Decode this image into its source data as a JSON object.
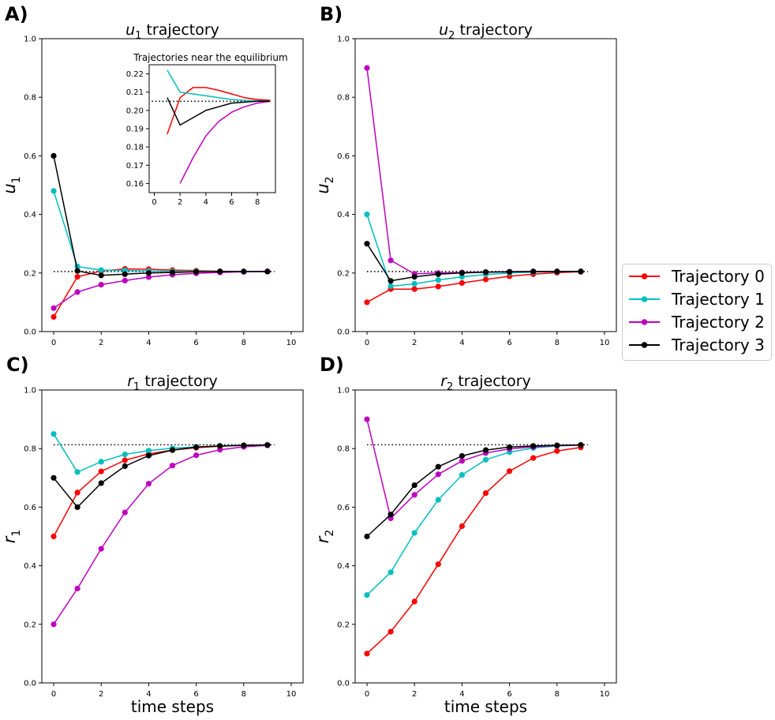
{
  "legend": {
    "placement": "center-right",
    "entries": [
      {
        "label": "Trajectory 0",
        "color": "#ff0000"
      },
      {
        "label": "Trajectory 1",
        "color": "#00bfbf"
      },
      {
        "label": "Trajectory 2",
        "color": "#bf00bf"
      },
      {
        "label": "Trajectory 3",
        "color": "#000000"
      }
    ]
  },
  "chart_data": [
    {
      "id": "u1",
      "panel_label": "A)",
      "type": "line",
      "title": "u₁ trajectory",
      "title_var": "u",
      "title_sub": "1",
      "title_rest": " trajectory",
      "ylabel": "u",
      "ylabel_sub": "1",
      "xlabel": "",
      "xlim": [
        -0.5,
        10.5
      ],
      "ylim": [
        0,
        1
      ],
      "xticks": [
        0,
        2,
        4,
        6,
        8,
        10
      ],
      "yticks": [
        "0.0",
        "0.2",
        "0.4",
        "0.6",
        "0.8",
        "1.0"
      ],
      "equilibrium": 0.205,
      "x": [
        0,
        1,
        2,
        3,
        4,
        5,
        6,
        7,
        8,
        9
      ],
      "series": [
        {
          "name": "Trajectory 0",
          "color": "#ff0000",
          "values": [
            0.05,
            0.187,
            0.207,
            0.214,
            0.213,
            0.21,
            0.208,
            0.206,
            0.205,
            0.205
          ]
        },
        {
          "name": "Trajectory 1",
          "color": "#00bfbf",
          "values": [
            0.48,
            0.222,
            0.21,
            0.209,
            0.207,
            0.206,
            0.206,
            0.205,
            0.205,
            0.205
          ]
        },
        {
          "name": "Trajectory 2",
          "color": "#bf00bf",
          "values": [
            0.08,
            0.135,
            0.16,
            0.174,
            0.186,
            0.194,
            0.199,
            0.202,
            0.204,
            0.205
          ]
        },
        {
          "name": "Trajectory 3",
          "color": "#000000",
          "values": [
            0.6,
            0.207,
            0.192,
            0.196,
            0.2,
            0.202,
            0.204,
            0.205,
            0.205,
            0.205
          ]
        }
      ],
      "inset": {
        "title": "Trajectories near the equilibrium",
        "type": "line",
        "xlim": [
          -0.4,
          9.4
        ],
        "ylim": [
          0.155,
          0.225
        ],
        "xticks": [
          0,
          2,
          4,
          6,
          8
        ],
        "yticks": [
          0.16,
          0.17,
          0.18,
          0.19,
          0.2,
          0.21,
          0.22
        ],
        "ytick_labels": [
          "0.16",
          "0.17",
          "0.18",
          "0.19",
          "0.20",
          "0.21",
          "0.22"
        ],
        "equilibrium": 0.205,
        "series": [
          {
            "name": "Trajectory 0",
            "color": "#ff0000",
            "x": [
              1,
              2,
              3,
              4,
              5,
              6,
              7,
              8,
              9
            ],
            "values": [
              0.187,
              0.207,
              0.2125,
              0.2125,
              0.211,
              0.209,
              0.207,
              0.206,
              0.2055
            ]
          },
          {
            "name": "Trajectory 1",
            "color": "#00bfbf",
            "x": [
              1,
              2,
              3,
              4,
              5,
              6,
              7,
              8,
              9
            ],
            "values": [
              0.222,
              0.21,
              0.209,
              0.208,
              0.207,
              0.206,
              0.2055,
              0.2053,
              0.205
            ]
          },
          {
            "name": "Trajectory 2",
            "color": "#bf00bf",
            "x": [
              2,
              3,
              4,
              5,
              6,
              7,
              8,
              9
            ],
            "values": [
              0.16,
              0.174,
              0.186,
              0.194,
              0.199,
              0.202,
              0.204,
              0.205
            ]
          },
          {
            "name": "Trajectory 3",
            "color": "#000000",
            "x": [
              1,
              2,
              3,
              4,
              5,
              6,
              7,
              8,
              9
            ],
            "values": [
              0.207,
              0.192,
              0.196,
              0.2,
              0.202,
              0.204,
              0.2045,
              0.205,
              0.205
            ]
          }
        ]
      }
    },
    {
      "id": "u2",
      "panel_label": "B)",
      "type": "line",
      "title": "u₂ trajectory",
      "title_var": "u",
      "title_sub": "2",
      "title_rest": " trajectory",
      "ylabel": "u",
      "ylabel_sub": "2",
      "xlabel": "",
      "xlim": [
        -0.5,
        10.5
      ],
      "ylim": [
        0,
        1
      ],
      "xticks": [
        0,
        2,
        4,
        6,
        8,
        10
      ],
      "yticks": [
        "0.0",
        "0.2",
        "0.4",
        "0.6",
        "0.8",
        "1.0"
      ],
      "equilibrium": 0.205,
      "x": [
        0,
        1,
        2,
        3,
        4,
        5,
        6,
        7,
        8,
        9
      ],
      "series": [
        {
          "name": "Trajectory 0",
          "color": "#ff0000",
          "values": [
            0.1,
            0.145,
            0.145,
            0.154,
            0.166,
            0.178,
            0.189,
            0.196,
            0.201,
            0.204
          ]
        },
        {
          "name": "Trajectory 1",
          "color": "#00bfbf",
          "values": [
            0.4,
            0.155,
            0.163,
            0.176,
            0.187,
            0.195,
            0.2,
            0.203,
            0.204,
            0.205
          ]
        },
        {
          "name": "Trajectory 2",
          "color": "#bf00bf",
          "values": [
            0.9,
            0.243,
            0.197,
            0.2,
            0.202,
            0.203,
            0.204,
            0.205,
            0.205,
            0.205
          ]
        },
        {
          "name": "Trajectory 3",
          "color": "#000000",
          "values": [
            0.3,
            0.173,
            0.187,
            0.196,
            0.2,
            0.203,
            0.204,
            0.205,
            0.205,
            0.205
          ]
        }
      ]
    },
    {
      "id": "r1",
      "panel_label": "C)",
      "type": "line",
      "title": "r₁ trajectory",
      "title_var": "r",
      "title_sub": "1",
      "title_rest": " trajectory",
      "ylabel": "r",
      "ylabel_sub": "1",
      "xlabel": "time steps",
      "xlim": [
        -0.5,
        10.5
      ],
      "ylim": [
        0,
        1
      ],
      "xticks": [
        0,
        2,
        4,
        6,
        8,
        10
      ],
      "yticks": [
        "0.0",
        "0.2",
        "0.4",
        "0.6",
        "0.8",
        "1.0"
      ],
      "equilibrium": 0.813,
      "x": [
        0,
        1,
        2,
        3,
        4,
        5,
        6,
        7,
        8,
        9
      ],
      "series": [
        {
          "name": "Trajectory 0",
          "color": "#ff0000",
          "values": [
            0.5,
            0.65,
            0.722,
            0.76,
            0.782,
            0.795,
            0.803,
            0.808,
            0.811,
            0.812
          ]
        },
        {
          "name": "Trajectory 1",
          "color": "#00bfbf",
          "values": [
            0.85,
            0.72,
            0.755,
            0.78,
            0.793,
            0.801,
            0.806,
            0.809,
            0.811,
            0.812
          ]
        },
        {
          "name": "Trajectory 2",
          "color": "#bf00bf",
          "values": [
            0.2,
            0.322,
            0.458,
            0.582,
            0.68,
            0.742,
            0.777,
            0.796,
            0.806,
            0.811
          ]
        },
        {
          "name": "Trajectory 3",
          "color": "#000000",
          "values": [
            0.7,
            0.6,
            0.682,
            0.74,
            0.776,
            0.795,
            0.805,
            0.809,
            0.811,
            0.812
          ]
        }
      ]
    },
    {
      "id": "r2",
      "panel_label": "D)",
      "type": "line",
      "title": "r₂ trajectory",
      "title_var": "r",
      "title_sub": "2",
      "title_rest": " trajectory",
      "ylabel": "r",
      "ylabel_sub": "2",
      "xlabel": "time steps",
      "xlim": [
        -0.5,
        10.5
      ],
      "ylim": [
        0,
        1
      ],
      "xticks": [
        0,
        2,
        4,
        6,
        8,
        10
      ],
      "yticks": [
        "0.0",
        "0.2",
        "0.4",
        "0.6",
        "0.8",
        "1.0"
      ],
      "equilibrium": 0.813,
      "x": [
        0,
        1,
        2,
        3,
        4,
        5,
        6,
        7,
        8,
        9
      ],
      "series": [
        {
          "name": "Trajectory 0",
          "color": "#ff0000",
          "values": [
            0.1,
            0.175,
            0.278,
            0.405,
            0.535,
            0.648,
            0.723,
            0.768,
            0.792,
            0.804
          ]
        },
        {
          "name": "Trajectory 1",
          "color": "#00bfbf",
          "values": [
            0.3,
            0.378,
            0.512,
            0.625,
            0.71,
            0.762,
            0.788,
            0.802,
            0.809,
            0.812
          ]
        },
        {
          "name": "Trajectory 2",
          "color": "#bf00bf",
          "values": [
            0.9,
            0.562,
            0.642,
            0.712,
            0.758,
            0.785,
            0.799,
            0.806,
            0.81,
            0.812
          ]
        },
        {
          "name": "Trajectory 3",
          "color": "#000000",
          "values": [
            0.5,
            0.575,
            0.675,
            0.738,
            0.775,
            0.795,
            0.805,
            0.809,
            0.811,
            0.812
          ]
        }
      ]
    }
  ]
}
